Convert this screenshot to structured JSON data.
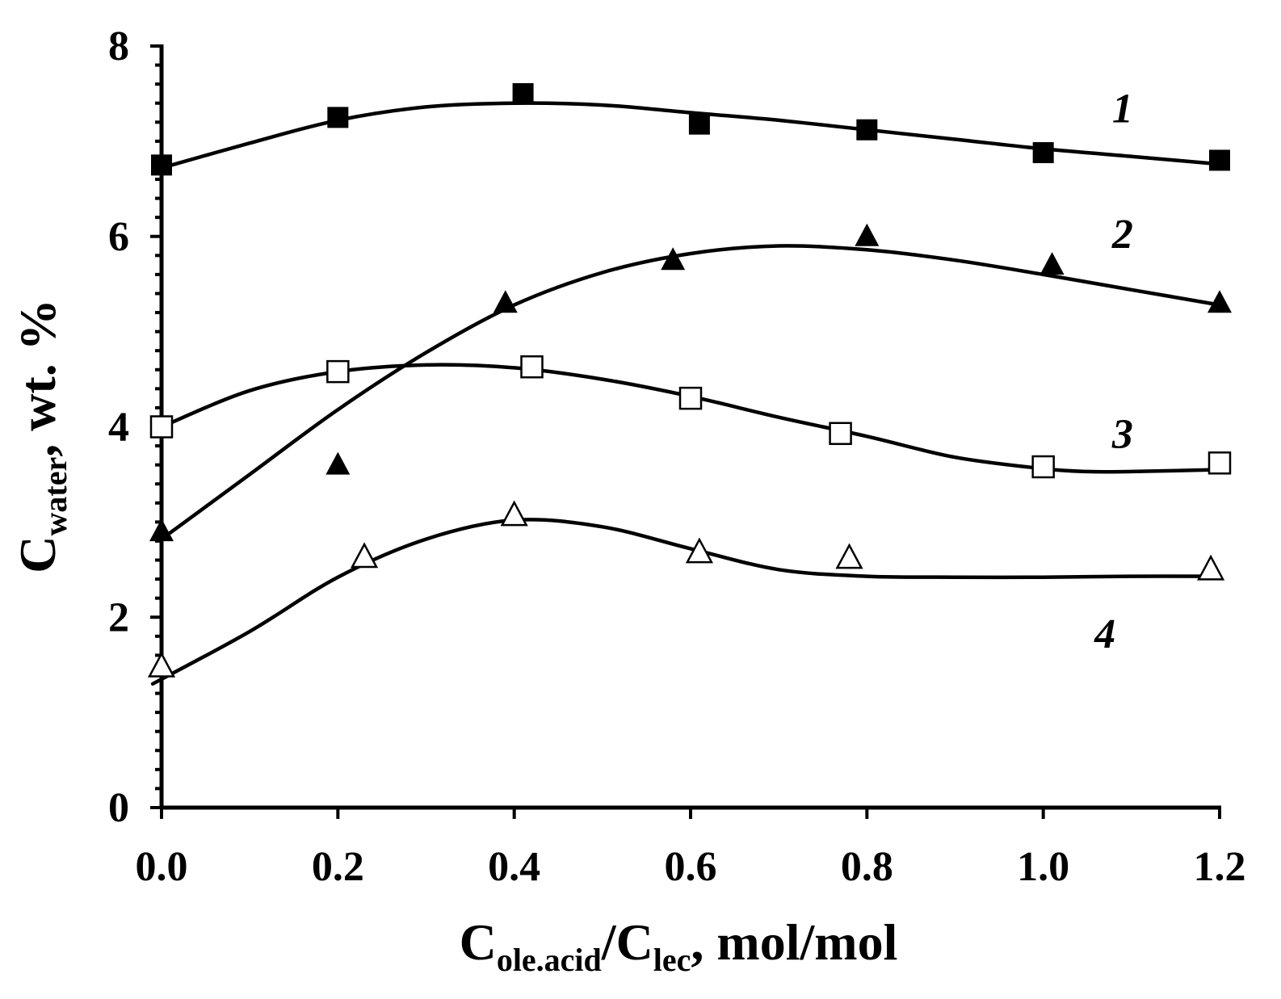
{
  "chart_data": {
    "type": "scatter",
    "title": "",
    "xlabel": {
      "parts": [
        {
          "text": "C",
          "sub": false
        },
        {
          "text": "ole.acid",
          "sub": true
        },
        {
          "text": "/C",
          "sub": false
        },
        {
          "text": "lec",
          "sub": true
        },
        {
          "text": ", mol/mol",
          "sub": false
        }
      ]
    },
    "ylabel": {
      "parts": [
        {
          "text": "C",
          "sub": false
        },
        {
          "text": "water",
          "sub": true
        },
        {
          "text": ", wt. %",
          "sub": false
        }
      ]
    },
    "xlim": [
      0,
      1.2
    ],
    "ylim": [
      0,
      8
    ],
    "x_ticks": [
      0.0,
      0.2,
      0.4,
      0.6,
      0.8,
      1.0,
      1.2
    ],
    "x_tick_labels": [
      "0.0",
      "0.2",
      "0.4",
      "0.6",
      "0.8",
      "1.0",
      "1.2"
    ],
    "y_ticks": [
      0,
      2,
      4,
      6,
      8
    ],
    "y_tick_labels": [
      "0",
      "2",
      "4",
      "6",
      "8"
    ],
    "y_minor_step": 0.2,
    "grid": false,
    "series": [
      {
        "name": "1",
        "marker": "filled-square",
        "points": [
          [
            0.0,
            6.75
          ],
          [
            0.2,
            7.25
          ],
          [
            0.41,
            7.5
          ],
          [
            0.61,
            7.18
          ],
          [
            0.8,
            7.12
          ],
          [
            1.0,
            6.88
          ],
          [
            1.2,
            6.8
          ]
        ],
        "fit": [
          [
            0.0,
            6.72
          ],
          [
            0.1,
            6.98
          ],
          [
            0.2,
            7.22
          ],
          [
            0.3,
            7.36
          ],
          [
            0.4,
            7.4
          ],
          [
            0.5,
            7.38
          ],
          [
            0.6,
            7.3
          ],
          [
            0.7,
            7.22
          ],
          [
            0.8,
            7.12
          ],
          [
            0.9,
            7.02
          ],
          [
            1.0,
            6.92
          ],
          [
            1.1,
            6.84
          ],
          [
            1.2,
            6.76
          ]
        ],
        "label_at": [
          1.09,
          7.2
        ]
      },
      {
        "name": "2",
        "marker": "filled-triangle",
        "points": [
          [
            0.0,
            2.9
          ],
          [
            0.2,
            3.6
          ],
          [
            0.39,
            5.3
          ],
          [
            0.58,
            5.75
          ],
          [
            0.8,
            6.0
          ],
          [
            1.01,
            5.7
          ],
          [
            1.2,
            5.3
          ]
        ],
        "fit": [
          [
            0.0,
            2.82
          ],
          [
            0.1,
            3.5
          ],
          [
            0.2,
            4.18
          ],
          [
            0.3,
            4.78
          ],
          [
            0.4,
            5.28
          ],
          [
            0.5,
            5.62
          ],
          [
            0.6,
            5.82
          ],
          [
            0.7,
            5.9
          ],
          [
            0.8,
            5.86
          ],
          [
            0.9,
            5.75
          ],
          [
            1.0,
            5.6
          ],
          [
            1.1,
            5.44
          ],
          [
            1.2,
            5.28
          ]
        ],
        "label_at": [
          1.09,
          5.88
        ]
      },
      {
        "name": "3",
        "marker": "open-square",
        "points": [
          [
            0.0,
            4.0
          ],
          [
            0.2,
            4.58
          ],
          [
            0.42,
            4.63
          ],
          [
            0.6,
            4.3
          ],
          [
            0.77,
            3.93
          ],
          [
            1.0,
            3.58
          ],
          [
            1.2,
            3.62
          ]
        ],
        "fit": [
          [
            0.0,
            4.0
          ],
          [
            0.1,
            4.38
          ],
          [
            0.2,
            4.58
          ],
          [
            0.3,
            4.65
          ],
          [
            0.4,
            4.62
          ],
          [
            0.5,
            4.5
          ],
          [
            0.6,
            4.32
          ],
          [
            0.7,
            4.1
          ],
          [
            0.8,
            3.9
          ],
          [
            0.9,
            3.68
          ],
          [
            1.0,
            3.56
          ],
          [
            1.05,
            3.53
          ],
          [
            1.1,
            3.53
          ],
          [
            1.2,
            3.55
          ]
        ],
        "label_at": [
          1.09,
          3.78
        ]
      },
      {
        "name": "4",
        "marker": "open-triangle",
        "points": [
          [
            0.0,
            1.48
          ],
          [
            0.23,
            2.63
          ],
          [
            0.4,
            3.07
          ],
          [
            0.61,
            2.68
          ],
          [
            0.78,
            2.62
          ],
          [
            1.19,
            2.5
          ]
        ],
        "fit": [
          [
            -0.01,
            1.3
          ],
          [
            0.1,
            1.85
          ],
          [
            0.2,
            2.42
          ],
          [
            0.3,
            2.82
          ],
          [
            0.4,
            3.02
          ],
          [
            0.5,
            2.95
          ],
          [
            0.6,
            2.72
          ],
          [
            0.7,
            2.5
          ],
          [
            0.8,
            2.43
          ],
          [
            0.9,
            2.42
          ],
          [
            1.0,
            2.42
          ],
          [
            1.1,
            2.43
          ],
          [
            1.2,
            2.43
          ]
        ],
        "label_at": [
          1.07,
          1.68
        ]
      }
    ]
  }
}
